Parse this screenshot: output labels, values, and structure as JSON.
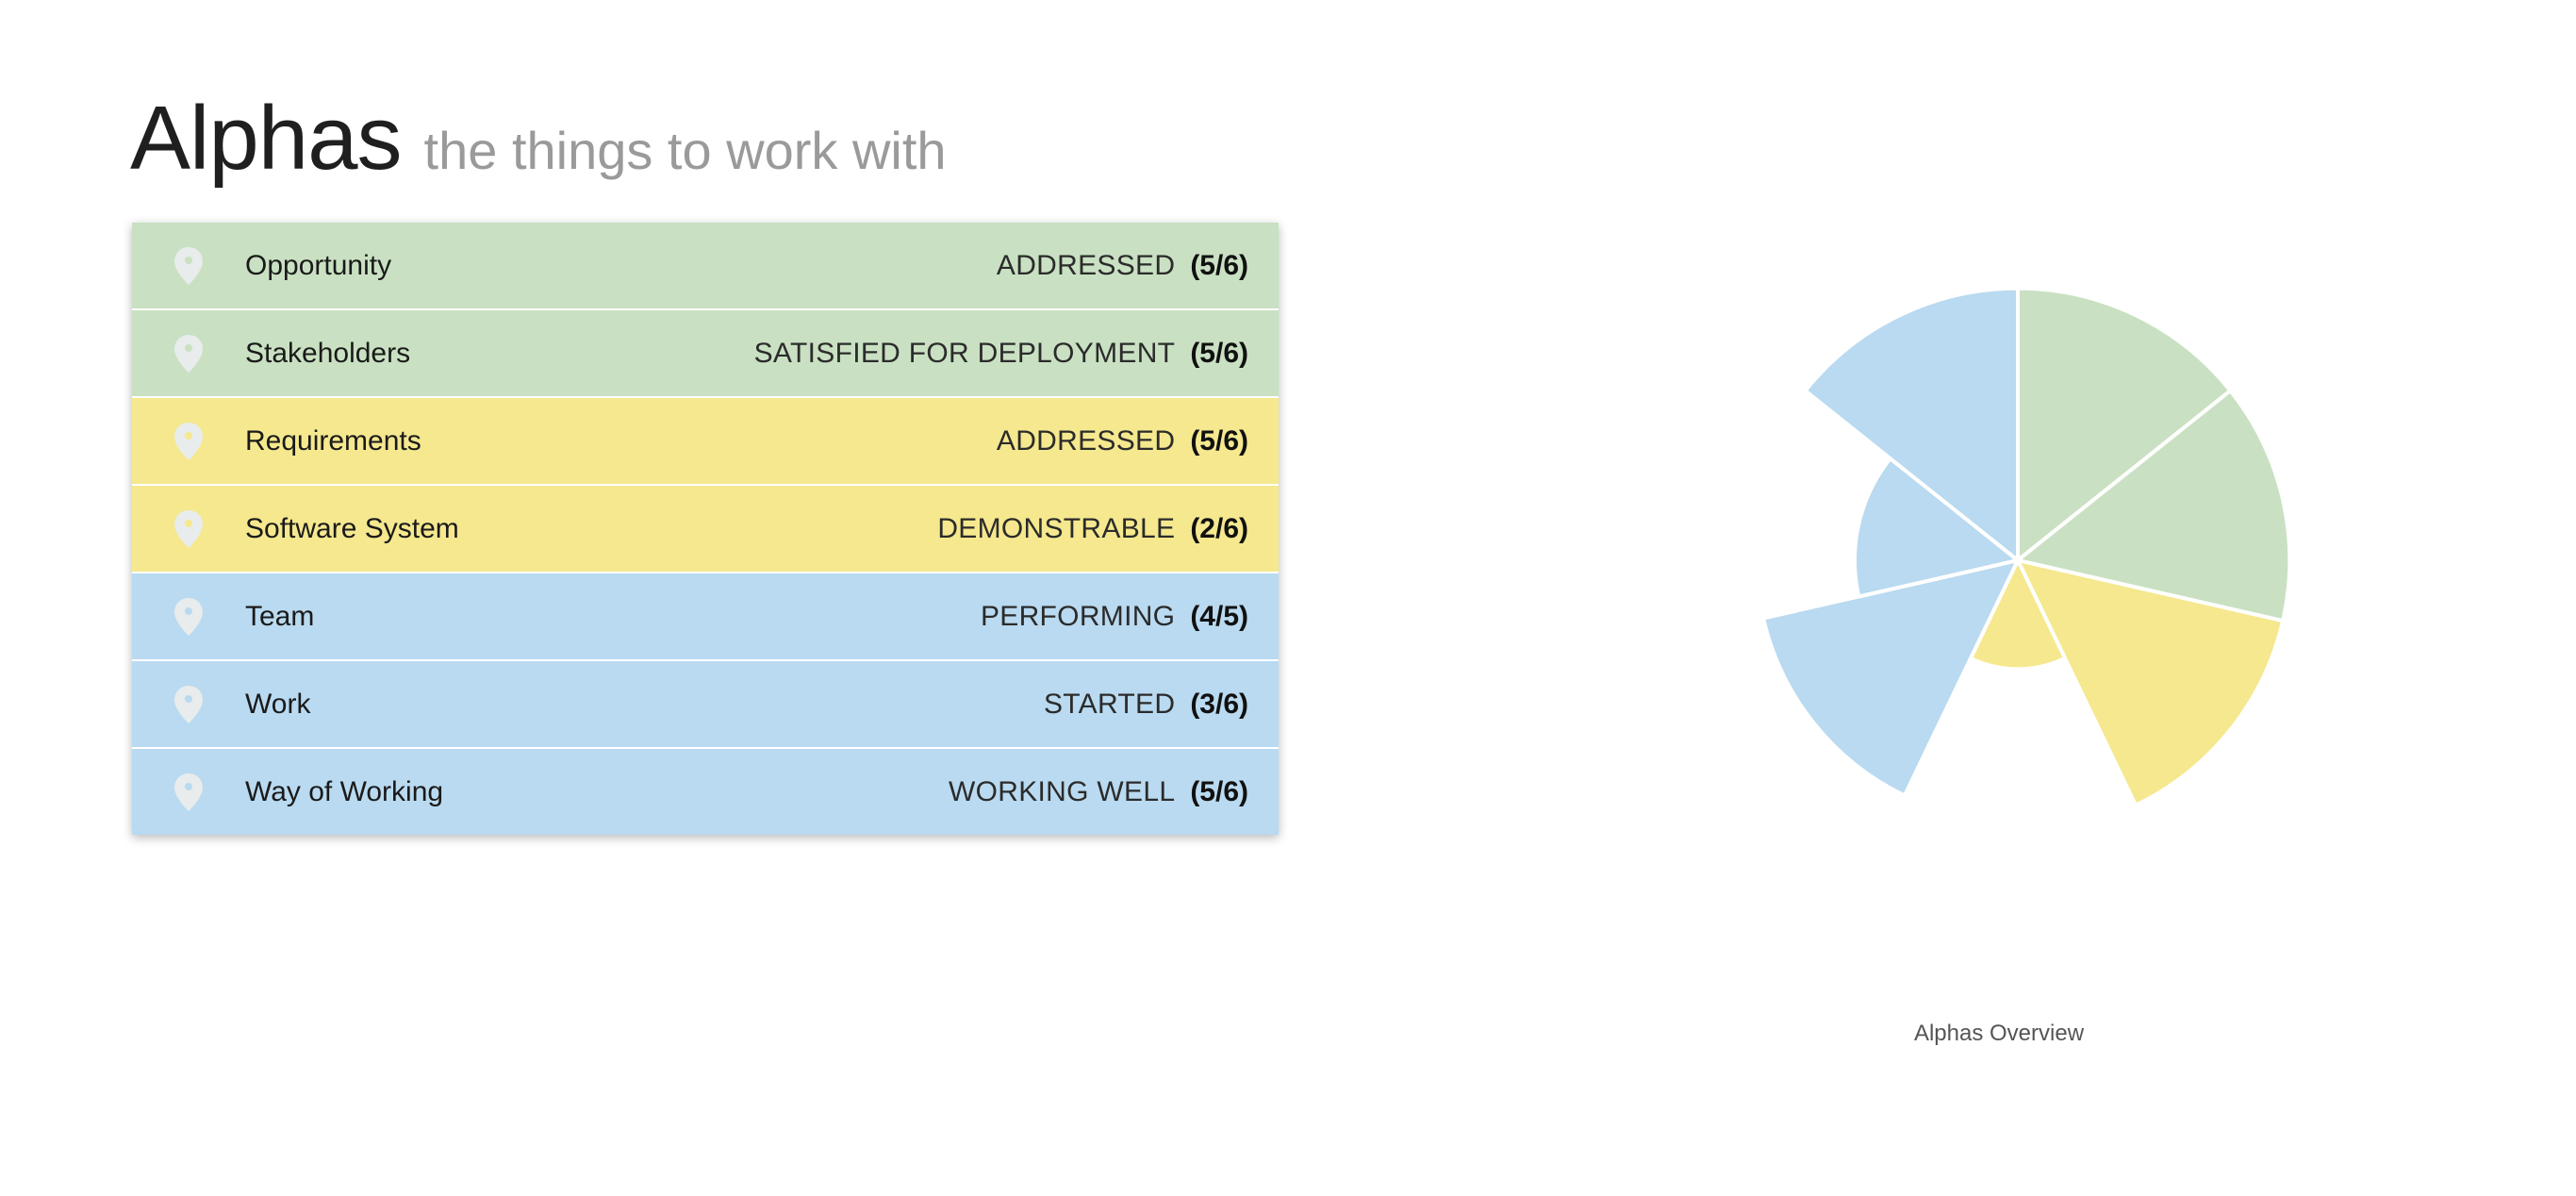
{
  "header": {
    "title": "Alphas",
    "subtitle": "the things to work with"
  },
  "colors": {
    "customer": "#c9e1c2",
    "solution": "#f5e88e",
    "endeavor": "#b9daf0",
    "pin": "#e8ecec"
  },
  "alphas": [
    {
      "name": "Opportunity",
      "state": "ADDRESSED",
      "progress": "(5/6)",
      "area": "customer",
      "icon": "map-pin-icon"
    },
    {
      "name": "Stakeholders",
      "state": "SATISFIED FOR DEPLOYMENT",
      "progress": "(5/6)",
      "area": "customer",
      "icon": "map-pin-icon"
    },
    {
      "name": "Requirements",
      "state": "ADDRESSED",
      "progress": "(5/6)",
      "area": "solution",
      "icon": "map-pin-icon"
    },
    {
      "name": "Software System",
      "state": "DEMONSTRABLE",
      "progress": "(2/6)",
      "area": "solution",
      "icon": "map-pin-icon"
    },
    {
      "name": "Team",
      "state": "PERFORMING",
      "progress": "(4/5)",
      "area": "endeavor",
      "icon": "map-pin-icon"
    },
    {
      "name": "Work",
      "state": "STARTED",
      "progress": "(3/6)",
      "area": "endeavor",
      "icon": "map-pin-icon"
    },
    {
      "name": "Way of Working",
      "state": "WORKING WELL",
      "progress": "(5/6)",
      "area": "endeavor",
      "icon": "map-pin-icon"
    }
  ],
  "chart_data": {
    "type": "pie",
    "subtype": "polar-area",
    "caption": "Alphas Overview",
    "categories": [
      "Opportunity",
      "Stakeholders",
      "Requirements",
      "Software System",
      "Team",
      "Work",
      "Way of Working"
    ],
    "values": [
      0.8333,
      0.8333,
      0.8333,
      0.3333,
      0.8,
      0.5,
      0.8333
    ],
    "colors": [
      "#c9e1c2",
      "#c9e1c2",
      "#f5e88e",
      "#f5e88e",
      "#b9daf0",
      "#b9daf0",
      "#b9daf0"
    ]
  }
}
